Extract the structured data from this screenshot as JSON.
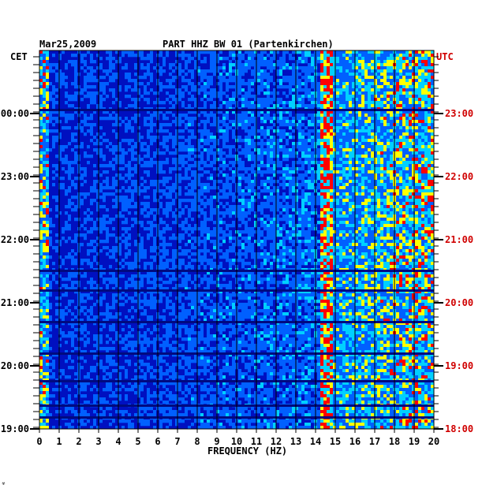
{
  "chart_data": {
    "type": "heatmap",
    "title_left": "Mar25,2009",
    "title_center": "PART HHZ BW 01 (Partenkirchen)",
    "left_axis_label": "CET",
    "right_axis_label": "UTC",
    "xlabel": "FREQUENCY (HZ)",
    "x_ticks": [
      "0",
      "1",
      "2",
      "3",
      "4",
      "5",
      "6",
      "7",
      "8",
      "9",
      "10",
      "11",
      "12",
      "13",
      "14",
      "15",
      "16",
      "17",
      "18",
      "19",
      "20"
    ],
    "xlim": [
      0,
      20
    ],
    "left_ticks": [
      "00:00",
      "23:00",
      "22:00",
      "21:00",
      "20:00",
      "19:00"
    ],
    "right_ticks": [
      "23:00",
      "22:00",
      "21:00",
      "20:00",
      "19:00",
      "18:00"
    ],
    "footer_mark": "☣",
    "colors": {
      "low": "#0010c0",
      "mid": "#0060ff",
      "cyan": "#00d0ff",
      "high": "#ffff00",
      "peak": "#ff0000",
      "utc_text": "#d00000"
    }
  }
}
